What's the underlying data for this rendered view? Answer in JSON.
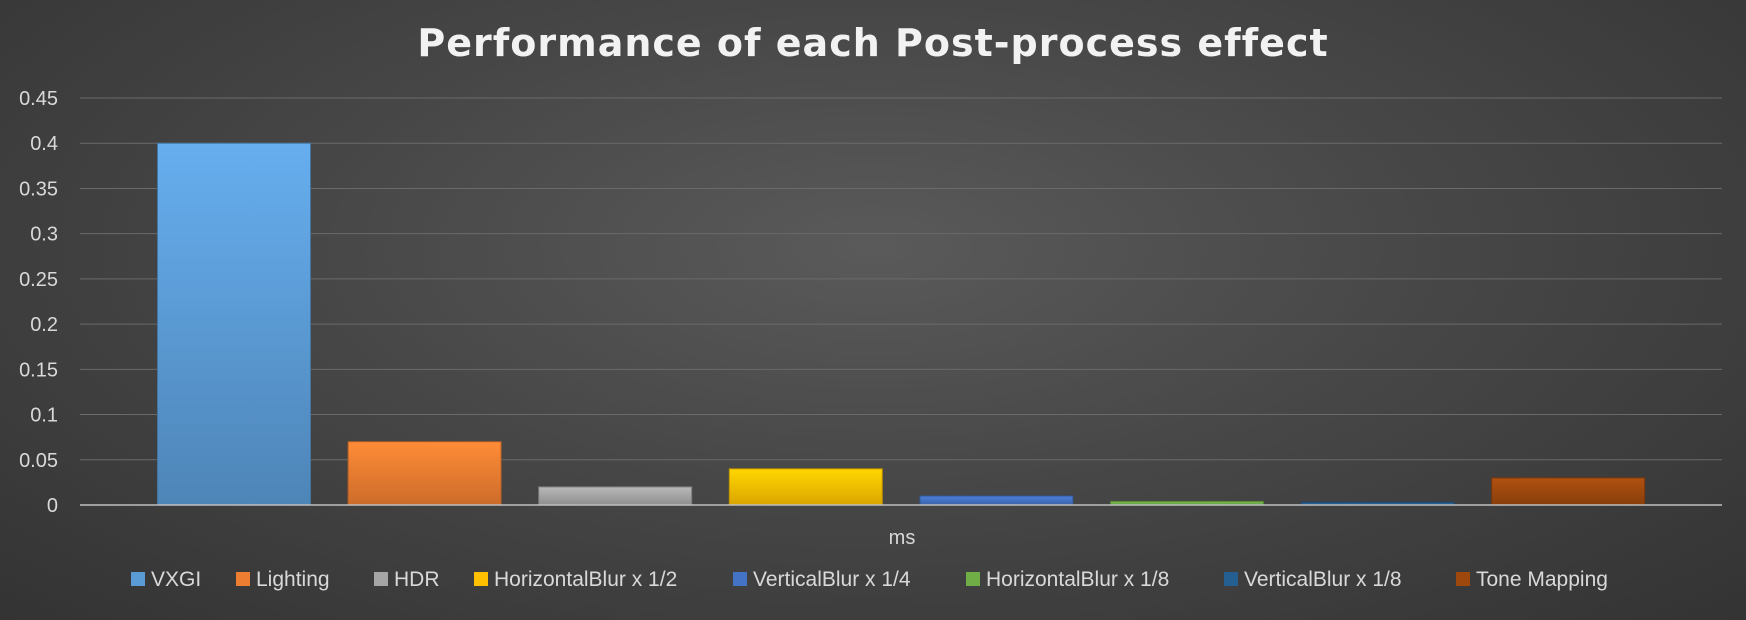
{
  "chart_data": {
    "type": "bar",
    "title": "Performance of each Post-process effect",
    "xlabel": "ms",
    "ylabel": "",
    "ylim": [
      0,
      0.45
    ],
    "yticks": [
      "0",
      "0.05",
      "0.1",
      "0.15",
      "0.2",
      "0.25",
      "0.3",
      "0.35",
      "0.4",
      "0.45"
    ],
    "ytick_values": [
      0,
      0.05,
      0.1,
      0.15,
      0.2,
      0.25,
      0.3,
      0.35,
      0.4,
      0.45
    ],
    "grid": true,
    "legend_position": "bottom",
    "series": [
      {
        "name": "VXGI",
        "value": 0.4,
        "color": "#5b9bd5"
      },
      {
        "name": "Lighting",
        "value": 0.07,
        "color": "#ed7d31"
      },
      {
        "name": "HDR",
        "value": 0.02,
        "color": "#a5a5a5"
      },
      {
        "name": "HorizontalBlur x 1/2",
        "value": 0.04,
        "color": "#ffc000"
      },
      {
        "name": "VerticalBlur x 1/4",
        "value": 0.01,
        "color": "#4472c4"
      },
      {
        "name": "HorizontalBlur x 1/8",
        "value": 0.004,
        "color": "#70ad47"
      },
      {
        "name": "VerticalBlur x 1/8",
        "value": 0.003,
        "color": "#255e91"
      },
      {
        "name": "Tone Mapping",
        "value": 0.03,
        "color": "#9e480e"
      }
    ]
  }
}
